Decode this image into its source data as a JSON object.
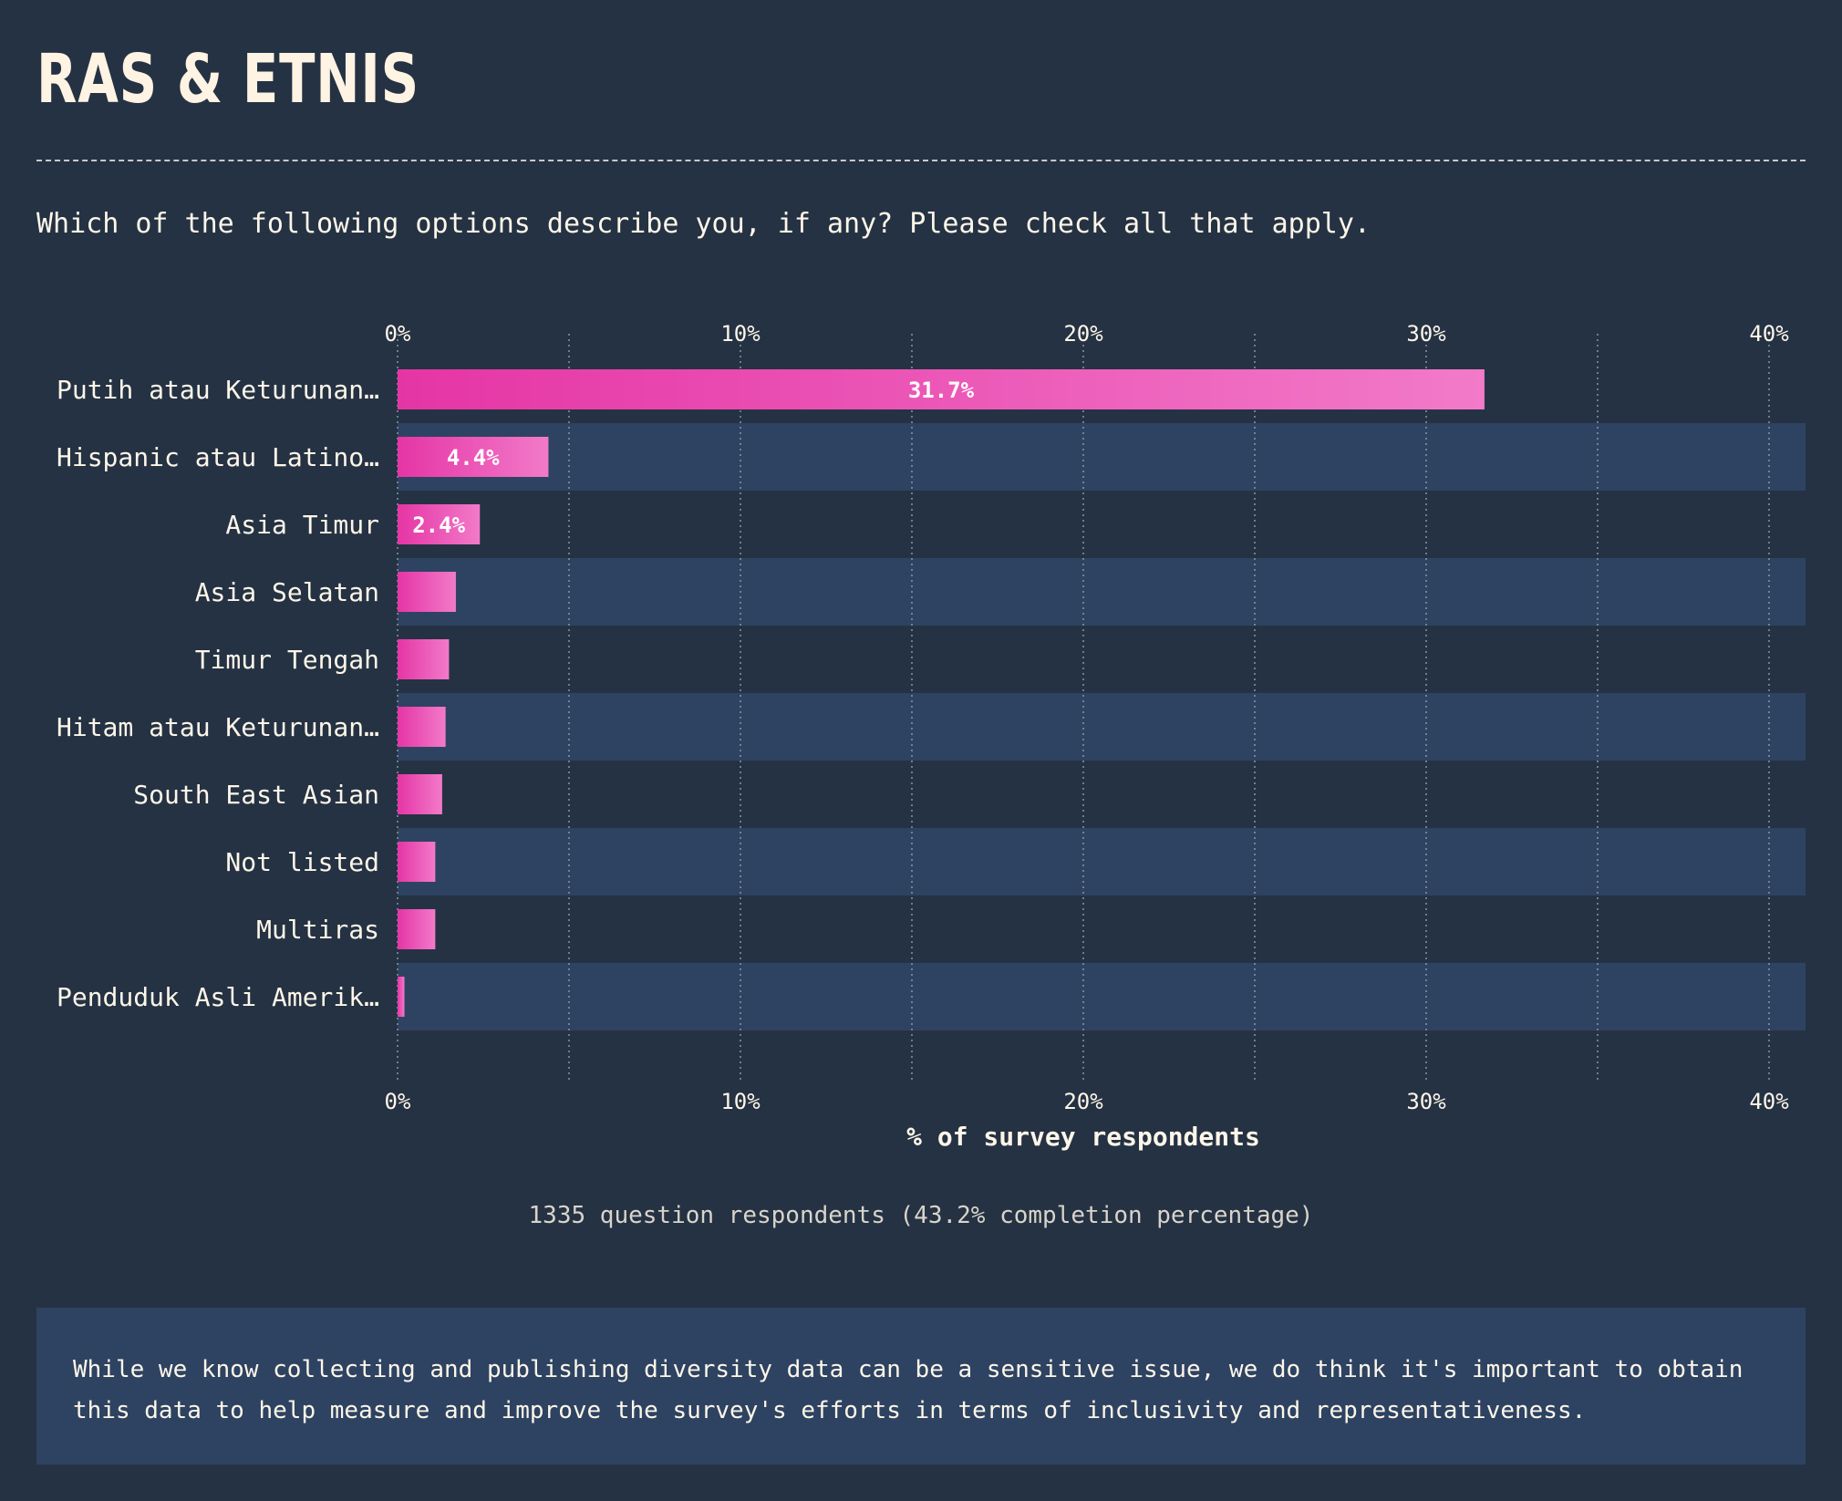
{
  "header": {
    "title": "RAS & ETNIS",
    "question": "Which of the following options describe you, if any? Please check all that apply."
  },
  "chart_data": {
    "type": "bar",
    "orientation": "horizontal",
    "categories": [
      "Putih atau Keturunan…",
      "Hispanic atau Latino…",
      "Asia Timur",
      "Asia Selatan",
      "Timur Tengah",
      "Hitam atau Keturunan…",
      "South East Asian",
      "Not listed",
      "Multiras",
      "Penduduk Asli Amerik…"
    ],
    "values": [
      31.7,
      4.4,
      2.4,
      1.7,
      1.5,
      1.4,
      1.3,
      1.1,
      1.1,
      0.2
    ],
    "data_labels": [
      "31.7%",
      "4.4%",
      "2.4%",
      "",
      "",
      "",
      "",
      "",
      "",
      ""
    ],
    "xlim": [
      0,
      41
    ],
    "x_ticks": [
      0,
      10,
      20,
      30,
      40
    ],
    "x_tick_labels": [
      "0%",
      "10%",
      "20%",
      "30%",
      "40%"
    ],
    "xlabel": "% of survey respondents",
    "ylabel": "",
    "grid": true,
    "colors": {
      "bar_start": "#e535a5",
      "bar_end": "#f27ac9",
      "row_band": "#2e4362",
      "background": "#253243",
      "grid": "#8a94a3",
      "text": "#fdf6e9"
    }
  },
  "footer": {
    "respondents": "1335 question respondents (43.2% completion percentage)",
    "note": "While we know collecting and publishing diversity data can be a sensitive issue, we do think it's important to obtain this data to help measure and improve the survey's efforts in terms of inclusivity and representativeness."
  }
}
